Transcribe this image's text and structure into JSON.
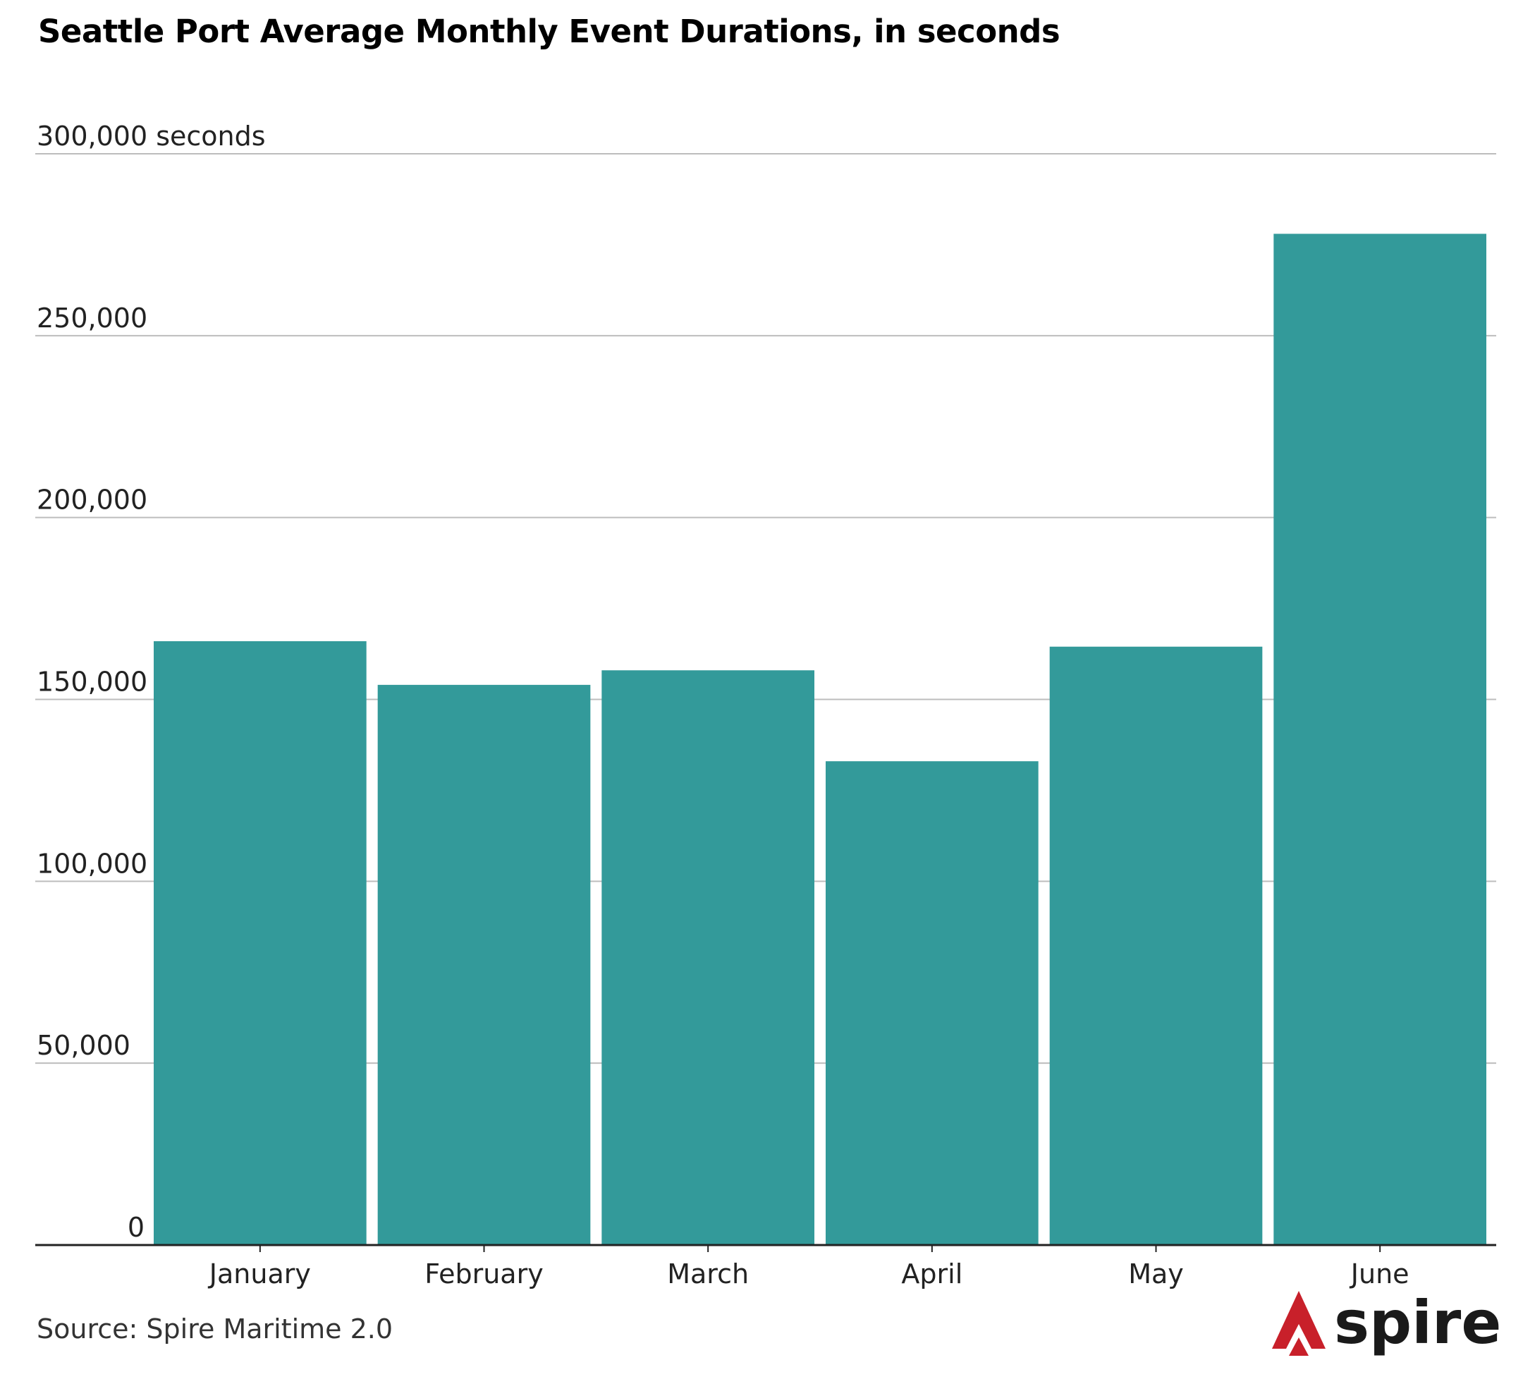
{
  "chart_data": {
    "type": "bar",
    "title": "Seattle Port Average Monthly Event Durations, in seconds",
    "categories": [
      "January",
      "February",
      "March",
      "April",
      "May",
      "June"
    ],
    "values": [
      166000,
      154000,
      158000,
      133000,
      164500,
      278000
    ],
    "ylim": [
      0,
      300000
    ],
    "y_ticks": [
      {
        "value": 0,
        "label": "0"
      },
      {
        "value": 50000,
        "label": "50,000"
      },
      {
        "value": 100000,
        "label": "100,000"
      },
      {
        "value": 150000,
        "label": "150,000"
      },
      {
        "value": 200000,
        "label": "200,000"
      },
      {
        "value": 250000,
        "label": "250,000"
      },
      {
        "value": 300000,
        "label": "300,000 seconds"
      }
    ],
    "grid": true,
    "bar_color": "#339a9a",
    "source": "Source: Spire Maritime 2.0"
  },
  "brand": {
    "name": "spire",
    "icon": "spire-logo-icon",
    "icon_color": "#c8202a"
  }
}
